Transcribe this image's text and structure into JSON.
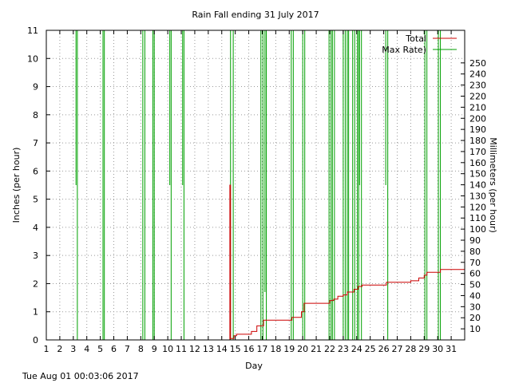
{
  "chart_data": {
    "type": "line",
    "title": "Rain Fall ending 31 July 2017",
    "xlabel": "Day",
    "ylabel": "Inches (per hour)",
    "y2label": "Millimeters (per hour)",
    "footer": "Tue Aug 01 00:03:06 2017",
    "xlim": [
      1,
      32
    ],
    "ylim": [
      0,
      11
    ],
    "y2lim": [
      0,
      279.4
    ],
    "grid": true,
    "legend_position": "top-right",
    "x_ticks": [
      1,
      2,
      3,
      4,
      5,
      6,
      7,
      8,
      9,
      10,
      11,
      12,
      13,
      14,
      15,
      16,
      17,
      18,
      19,
      20,
      21,
      22,
      23,
      24,
      25,
      26,
      27,
      28,
      29,
      30,
      31
    ],
    "y_ticks": [
      0,
      1,
      2,
      3,
      4,
      5,
      6,
      7,
      8,
      9,
      10,
      11
    ],
    "y2_ticks": [
      10,
      20,
      30,
      40,
      50,
      60,
      70,
      80,
      90,
      100,
      110,
      120,
      130,
      140,
      150,
      160,
      170,
      180,
      190,
      200,
      210,
      220,
      230,
      240,
      250
    ],
    "colors": {
      "total": "#cc0000",
      "max_rate": "#00a000",
      "grid": "#999999"
    },
    "series": [
      {
        "name": "Total",
        "points": [
          [
            1,
            0
          ],
          [
            14.6,
            0
          ],
          [
            14.6,
            5.5
          ],
          [
            14.65,
            5.5
          ],
          [
            14.65,
            0.05
          ],
          [
            14.9,
            0.05
          ],
          [
            14.9,
            0.15
          ],
          [
            15.1,
            0.15
          ],
          [
            15.1,
            0.2
          ],
          [
            16.2,
            0.2
          ],
          [
            16.2,
            0.3
          ],
          [
            16.6,
            0.3
          ],
          [
            16.6,
            0.5
          ],
          [
            17.1,
            0.5
          ],
          [
            17.1,
            0.7
          ],
          [
            19.2,
            0.7
          ],
          [
            19.2,
            0.8
          ],
          [
            19.9,
            0.8
          ],
          [
            19.9,
            1.0
          ],
          [
            20.1,
            1.0
          ],
          [
            20.1,
            1.3
          ],
          [
            22.0,
            1.3
          ],
          [
            22.0,
            1.4
          ],
          [
            22.3,
            1.4
          ],
          [
            22.3,
            1.45
          ],
          [
            22.6,
            1.45
          ],
          [
            22.6,
            1.55
          ],
          [
            23.0,
            1.55
          ],
          [
            23.0,
            1.6
          ],
          [
            23.3,
            1.6
          ],
          [
            23.3,
            1.7
          ],
          [
            23.8,
            1.7
          ],
          [
            23.8,
            1.8
          ],
          [
            24.1,
            1.8
          ],
          [
            24.1,
            1.9
          ],
          [
            24.4,
            1.9
          ],
          [
            24.4,
            1.95
          ],
          [
            26.2,
            1.95
          ],
          [
            26.2,
            2.05
          ],
          [
            28.0,
            2.05
          ],
          [
            28.0,
            2.1
          ],
          [
            28.6,
            2.1
          ],
          [
            28.6,
            2.2
          ],
          [
            29.0,
            2.2
          ],
          [
            29.0,
            2.3
          ],
          [
            29.2,
            2.3
          ],
          [
            29.2,
            2.4
          ],
          [
            30.2,
            2.4
          ],
          [
            30.2,
            2.5
          ],
          [
            32,
            2.5
          ]
        ]
      },
      {
        "name": "Max Rate)",
        "spikes": [
          [
            3.2,
            3.3,
            5.5
          ],
          [
            5.2,
            5.3,
            0
          ],
          [
            8.15,
            8.3,
            0
          ],
          [
            8.9,
            9.0,
            0
          ],
          [
            10.15,
            10.25,
            5.5
          ],
          [
            11.1,
            11.2,
            5.5
          ],
          [
            14.65,
            14.85,
            0
          ],
          [
            16.9,
            17.05,
            0
          ],
          [
            17.2,
            17.3,
            1.7
          ],
          [
            19.15,
            19.3,
            0
          ],
          [
            20.0,
            20.15,
            0
          ],
          [
            21.95,
            22.1,
            0
          ],
          [
            22.2,
            22.35,
            0
          ],
          [
            23.0,
            23.15,
            0
          ],
          [
            23.3,
            23.4,
            0
          ],
          [
            23.7,
            23.85,
            0
          ],
          [
            24.05,
            24.15,
            0
          ],
          [
            24.2,
            24.35,
            5.5
          ],
          [
            26.15,
            26.3,
            5.5
          ],
          [
            29.05,
            29.2,
            0
          ],
          [
            30.05,
            30.2,
            0
          ]
        ]
      }
    ]
  }
}
